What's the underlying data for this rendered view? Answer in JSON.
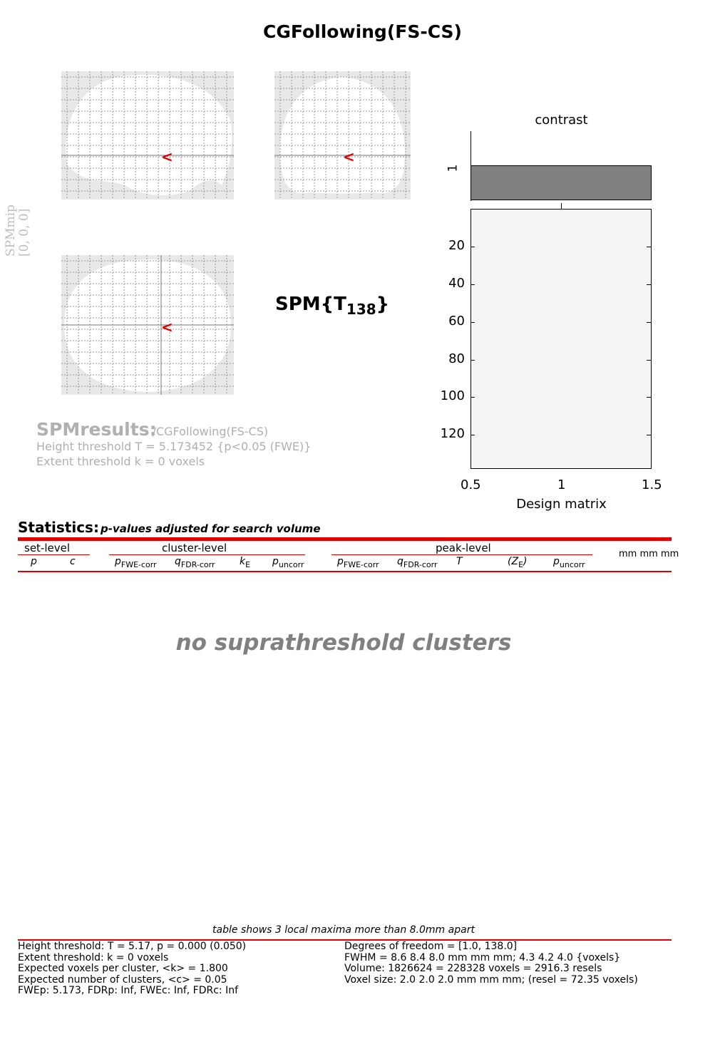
{
  "title": "CGFollowing(FS-CS)",
  "mip_label": {
    "line1": "SPMmip",
    "line2": "[0, 0, 0]"
  },
  "stat_label": {
    "main": "SPM{T",
    "df": "138",
    "close": "}"
  },
  "results": {
    "heading": "SPMresults:",
    "path": "/CGFollowing(FS-CS)",
    "height_line": "Height threshold T = 5.173452  {p<0.05 (FWE)}",
    "extent_line": "Extent threshold k = 0 voxels"
  },
  "contrast_panel": {
    "title": "contrast",
    "bar_label": "1",
    "y_ticks": [
      "20",
      "40",
      "60",
      "80",
      "100",
      "120"
    ],
    "x_ticks": [
      "0.5",
      "1",
      "1.5"
    ],
    "xlabel": "Design matrix"
  },
  "statistics": {
    "heading": "Statistics:",
    "subheading": "p-values adjusted for search volume",
    "groups": {
      "set": "set-level",
      "cluster": "cluster-level",
      "peak": "peak-level",
      "coords": "mm mm mm"
    },
    "cols": {
      "p": "p",
      "c": "c",
      "p_fwe": "p",
      "p_fwe_sub": "FWE-corr",
      "q_fdr": "q",
      "q_fdr_sub": "FDR-corr",
      "k": "k",
      "k_sub": "E",
      "p_unc": "p",
      "p_unc_sub": "uncorr",
      "pk_fwe": "p",
      "pk_fwe_sub": "FWE-corr",
      "pk_fdr": "q",
      "pk_fdr_sub": "FDR-corr",
      "T": "T",
      "Z": "(Z",
      "Z_sub": "E",
      "Z_close": ")",
      "pk_unc": "p",
      "pk_unc_sub": "uncorr"
    },
    "empty_message": "no suprathreshold clusters"
  },
  "footer": {
    "note": "table shows 3 local maxima more than 8.0mm apart",
    "left": [
      "Height threshold: T = 5.17, p = 0.000 (0.050)",
      "Extent threshold: k = 0 voxels",
      "Expected voxels per cluster, <k> = 1.800",
      "Expected number of clusters, <c> = 0.05",
      "FWEp: 5.173, FDRp: Inf, FWEc: Inf, FDRc: Inf"
    ],
    "right": [
      "Degrees of freedom = [1.0, 138.0]",
      "FWHM = 8.6 8.4 8.0 mm mm mm; 4.3 4.2 4.0 {voxels}",
      "Volume: 1826624 = 228328 voxels = 2916.3 resels",
      "Voxel size: 2.0 2.0 2.0 mm mm mm; (resel = 72.35 voxels)"
    ]
  }
}
